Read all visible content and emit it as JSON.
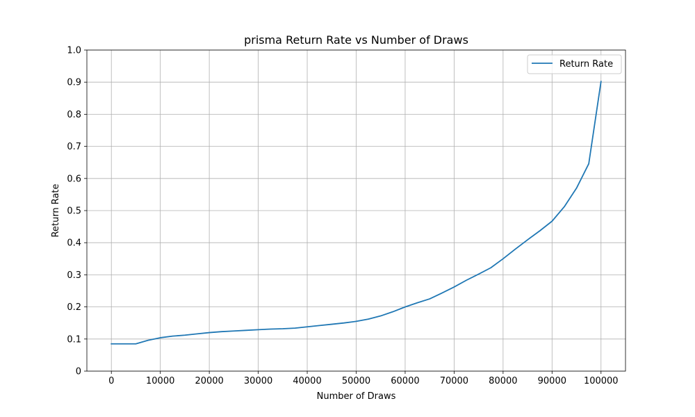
{
  "chart_data": {
    "type": "line",
    "title": "prisma Return Rate vs Number of Draws",
    "xlabel": "Number of Draws",
    "ylabel": "Return Rate",
    "xlim": [
      -5000,
      105000
    ],
    "ylim": [
      0,
      1.0
    ],
    "xticks": [
      0,
      10000,
      20000,
      30000,
      40000,
      50000,
      60000,
      70000,
      80000,
      90000,
      100000
    ],
    "yticks": [
      0,
      0.1,
      0.2,
      0.3,
      0.4,
      0.5,
      0.6,
      0.7,
      0.8,
      0.9,
      1.0
    ],
    "xtick_labels": [
      "0",
      "10000",
      "20000",
      "30000",
      "40000",
      "50000",
      "60000",
      "70000",
      "80000",
      "90000",
      "100000"
    ],
    "ytick_labels": [
      "0",
      "0.1",
      "0.2",
      "0.3",
      "0.4",
      "0.5",
      "0.6",
      "0.7",
      "0.8",
      "0.9",
      "1.0"
    ],
    "grid": true,
    "legend_position": "top-right",
    "series": [
      {
        "name": "Return Rate",
        "color": "#1f77b4",
        "x": [
          0,
          2500,
          5000,
          7500,
          10000,
          12500,
          15000,
          17500,
          20000,
          22500,
          25000,
          27500,
          30000,
          32500,
          35000,
          37500,
          40000,
          42500,
          45000,
          47500,
          50000,
          52500,
          55000,
          57500,
          60000,
          62500,
          65000,
          67500,
          70000,
          72500,
          75000,
          77500,
          80000,
          82500,
          85000,
          87500,
          90000,
          92500,
          95000,
          97500,
          100000
        ],
        "y": [
          0.085,
          0.085,
          0.085,
          0.096,
          0.104,
          0.109,
          0.112,
          0.116,
          0.12,
          0.123,
          0.125,
          0.127,
          0.129,
          0.131,
          0.132,
          0.134,
          0.138,
          0.142,
          0.146,
          0.15,
          0.155,
          0.162,
          0.172,
          0.185,
          0.2,
          0.213,
          0.225,
          0.243,
          0.262,
          0.283,
          0.302,
          0.322,
          0.35,
          0.38,
          0.409,
          0.437,
          0.467,
          0.512,
          0.57,
          0.646,
          0.902
        ]
      }
    ]
  }
}
